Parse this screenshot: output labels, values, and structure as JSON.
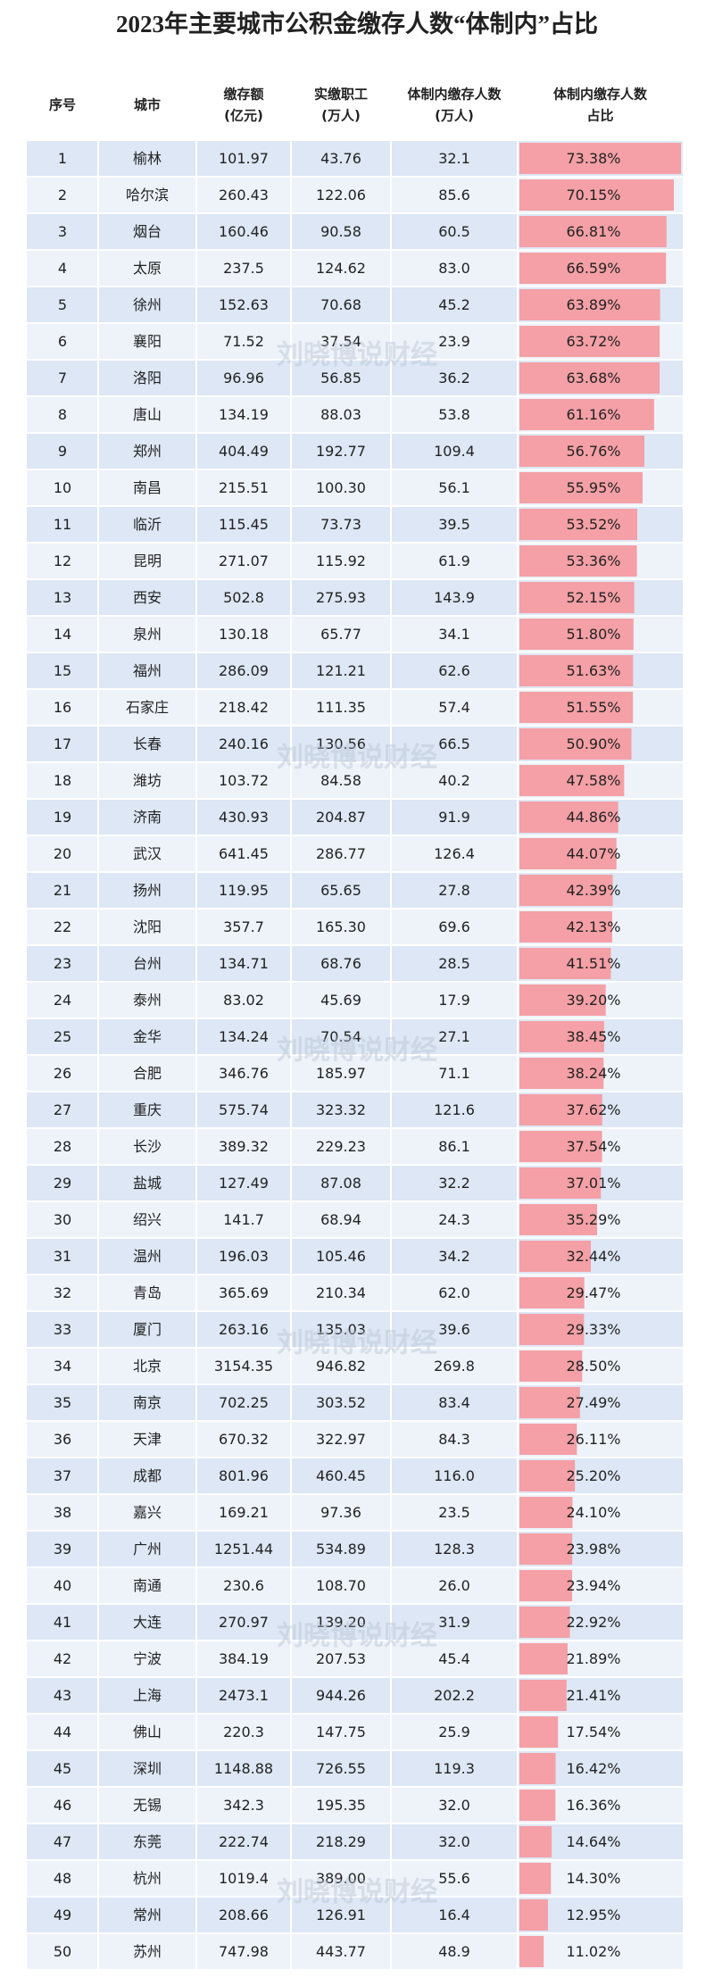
{
  "title": "2023年主要城市公积金缴存人数“体制内”占比",
  "watermark": "刘晓博说财经",
  "header": [
    [
      "序号"
    ],
    [
      "城市"
    ],
    [
      "缴存额",
      "(亿元)"
    ],
    [
      "实缴职工",
      "(万人)"
    ],
    [
      "体制内缴存人数",
      "(万人)"
    ],
    [
      "体制内缴存人数",
      "占比"
    ]
  ],
  "rows": [
    [
      "1",
      "榆林",
      "101.97",
      "43.76",
      "32.1"
    ],
    [
      "2",
      "哈尔滨",
      "260.43",
      "122.06",
      "85.6"
    ],
    [
      "3",
      "烟台",
      "160.46",
      "90.58",
      "60.5"
    ],
    [
      "4",
      "太原",
      "237.5",
      "124.62",
      "83.0"
    ],
    [
      "5",
      "徐州",
      "152.63",
      "70.68",
      "45.2"
    ],
    [
      "6",
      "襄阳",
      "71.52",
      "37.54",
      "23.9"
    ],
    [
      "7",
      "洛阳",
      "96.96",
      "56.85",
      "36.2"
    ],
    [
      "8",
      "唐山",
      "134.19",
      "88.03",
      "53.8"
    ],
    [
      "9",
      "郑州",
      "404.49",
      "192.77",
      "109.4"
    ],
    [
      "10",
      "南昌",
      "215.51",
      "100.30",
      "56.1"
    ],
    [
      "11",
      "临沂",
      "115.45",
      "73.73",
      "39.5"
    ],
    [
      "12",
      "昆明",
      "271.07",
      "115.92",
      "61.9"
    ],
    [
      "13",
      "西安",
      "502.8",
      "275.93",
      "143.9"
    ],
    [
      "14",
      "泉州",
      "130.18",
      "65.77",
      "34.1"
    ],
    [
      "15",
      "福州",
      "286.09",
      "121.21",
      "62.6"
    ],
    [
      "16",
      "石家庄",
      "218.42",
      "111.35",
      "57.4"
    ],
    [
      "17",
      "长春",
      "240.16",
      "130.56",
      "66.5"
    ],
    [
      "18",
      "潍坊",
      "103.72",
      "84.58",
      "40.2"
    ],
    [
      "19",
      "济南",
      "430.93",
      "204.87",
      "91.9"
    ],
    [
      "20",
      "武汉",
      "641.45",
      "286.77",
      "126.4"
    ],
    [
      "21",
      "扬州",
      "119.95",
      "65.65",
      "27.8"
    ],
    [
      "22",
      "沈阳",
      "357.7",
      "165.30",
      "69.6"
    ],
    [
      "23",
      "台州",
      "134.71",
      "68.76",
      "28.5"
    ],
    [
      "24",
      "泰州",
      "83.02",
      "45.69",
      "17.9"
    ],
    [
      "25",
      "金华",
      "134.24",
      "70.54",
      "27.1"
    ],
    [
      "26",
      "合肥",
      "346.76",
      "185.97",
      "71.1"
    ],
    [
      "27",
      "重庆",
      "575.74",
      "323.32",
      "121.6"
    ],
    [
      "28",
      "长沙",
      "389.32",
      "229.23",
      "86.1"
    ],
    [
      "29",
      "盐城",
      "127.49",
      "87.08",
      "32.2"
    ],
    [
      "30",
      "绍兴",
      "141.7",
      "68.94",
      "24.3"
    ],
    [
      "31",
      "温州",
      "196.03",
      "105.46",
      "34.2"
    ],
    [
      "32",
      "青岛",
      "365.69",
      "210.34",
      "62.0"
    ],
    [
      "33",
      "厦门",
      "263.16",
      "135.03",
      "39.6"
    ],
    [
      "34",
      "北京",
      "3154.35",
      "946.82",
      "269.8"
    ],
    [
      "35",
      "南京",
      "702.25",
      "303.52",
      "83.4"
    ],
    [
      "36",
      "天津",
      "670.32",
      "322.97",
      "84.3"
    ],
    [
      "37",
      "成都",
      "801.96",
      "460.45",
      "116.0"
    ],
    [
      "38",
      "嘉兴",
      "169.21",
      "97.36",
      "23.5"
    ],
    [
      "39",
      "广州",
      "1251.44",
      "534.89",
      "128.3"
    ],
    [
      "40",
      "南通",
      "230.6",
      "108.70",
      "26.0"
    ],
    [
      "41",
      "大连",
      "270.97",
      "139.20",
      "31.9"
    ],
    [
      "42",
      "宁波",
      "384.19",
      "207.53",
      "45.4"
    ],
    [
      "43",
      "上海",
      "2473.1",
      "944.26",
      "202.2"
    ],
    [
      "44",
      "佛山",
      "220.3",
      "147.75",
      "25.9"
    ],
    [
      "45",
      "深圳",
      "1148.88",
      "726.55",
      "119.3"
    ],
    [
      "46",
      "无锡",
      "342.3",
      "195.35",
      "32.0"
    ],
    [
      "47",
      "东莞",
      "222.74",
      "218.29",
      "32.0"
    ],
    [
      "48",
      "杭州",
      "1019.4",
      "389.00",
      "55.6"
    ],
    [
      "49",
      "常州",
      "208.66",
      "126.91",
      "16.4"
    ],
    [
      "50",
      "苏州",
      "747.98",
      "443.77",
      "48.9"
    ]
  ],
  "share": {
    "color": "#f4a0a6",
    "values": [
      73.38,
      70.15,
      66.81,
      66.59,
      63.89,
      63.72,
      63.68,
      61.16,
      56.76,
      55.95,
      53.52,
      53.36,
      52.15,
      51.8,
      51.63,
      51.55,
      50.9,
      47.58,
      44.86,
      44.07,
      42.39,
      42.13,
      41.51,
      39.2,
      38.45,
      38.24,
      37.62,
      37.54,
      37.01,
      35.29,
      32.44,
      29.47,
      29.33,
      28.5,
      27.49,
      26.11,
      25.2,
      24.1,
      23.98,
      23.94,
      22.92,
      21.89,
      21.41,
      17.54,
      16.42,
      16.36,
      14.64,
      14.3,
      12.95,
      11.02
    ],
    "value_labels": [
      "73.38%",
      "70.15%",
      "66.81%",
      "66.59%",
      "63.89%",
      "63.72%",
      "63.68%",
      "61.16%",
      "56.76%",
      "55.95%",
      "53.52%",
      "53.36%",
      "52.15%",
      "51.80%",
      "51.63%",
      "51.55%",
      "50.90%",
      "47.58%",
      "44.86%",
      "44.07%",
      "42.39%",
      "42.13%",
      "41.51%",
      "39.20%",
      "38.45%",
      "38.24%",
      "37.62%",
      "37.54%",
      "37.01%",
      "35.29%",
      "32.44%",
      "29.47%",
      "29.33%",
      "28.50%",
      "27.49%",
      "26.11%",
      "25.20%",
      "24.10%",
      "23.98%",
      "23.94%",
      "22.92%",
      "21.89%",
      "21.41%",
      "17.54%",
      "16.42%",
      "16.36%",
      "14.64%",
      "14.30%",
      "12.95%",
      "11.02%"
    ]
  }
}
